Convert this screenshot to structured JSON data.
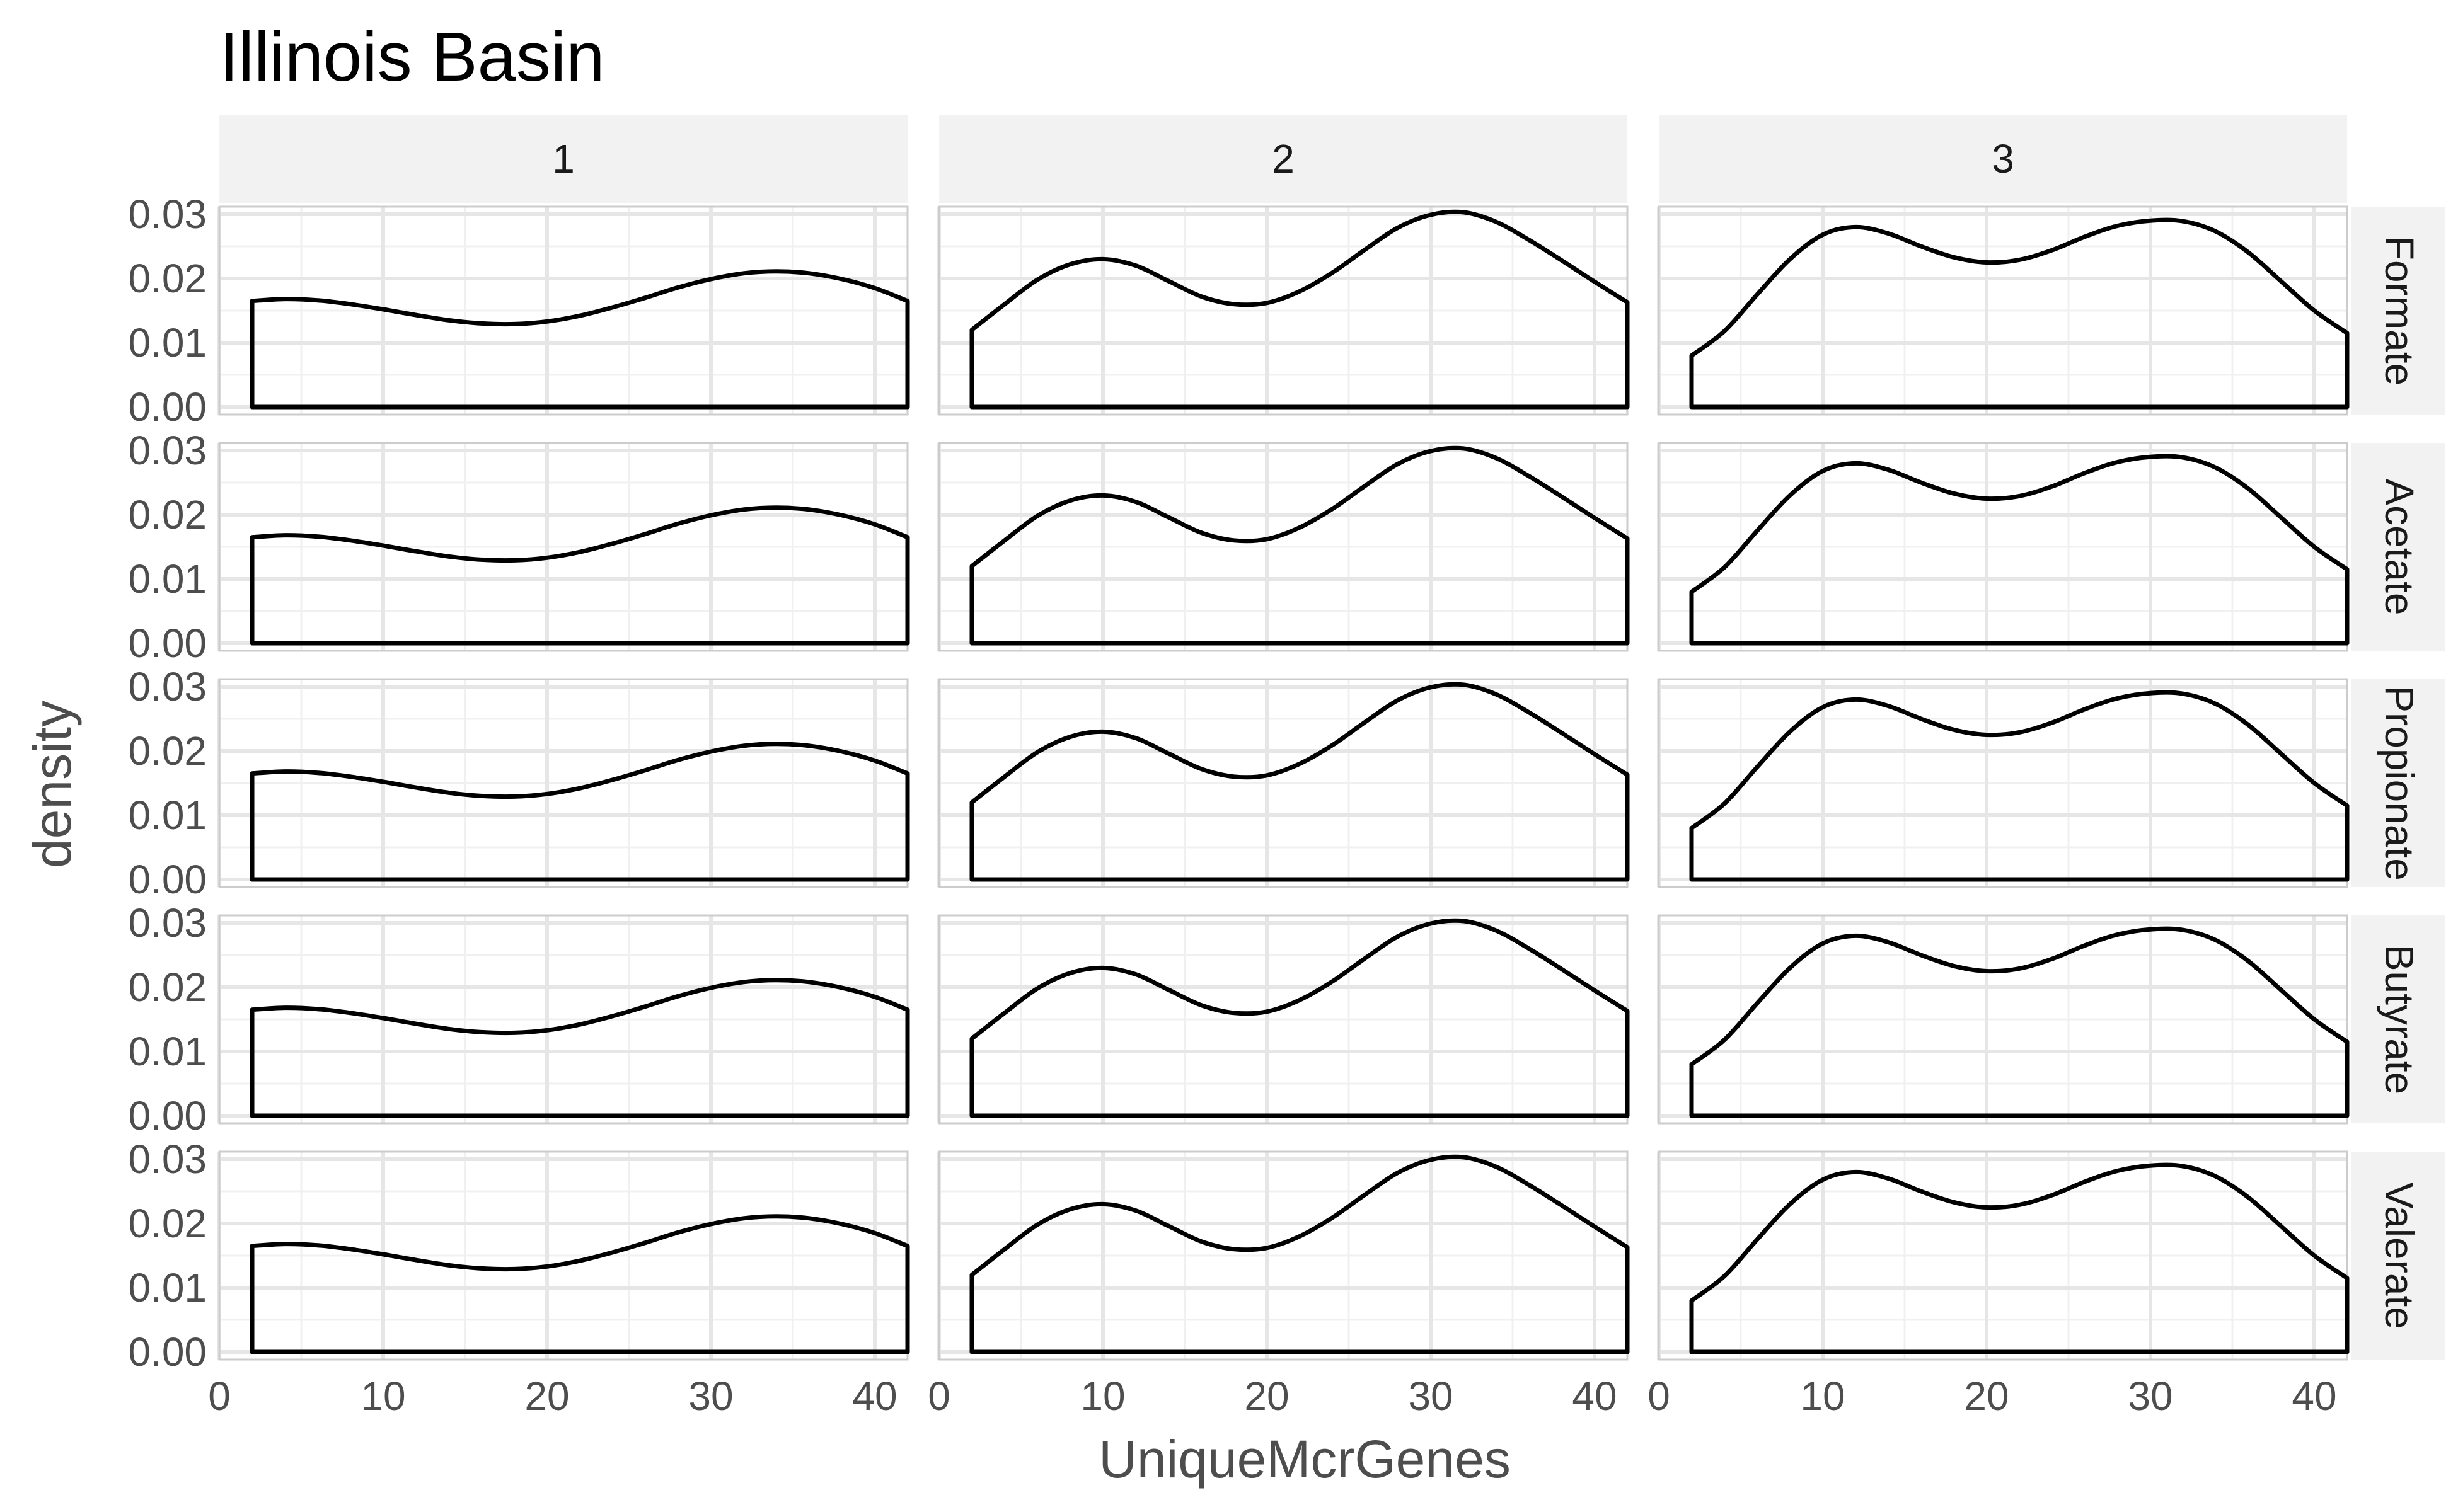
{
  "chart_data": {
    "type": "area",
    "chart_kind": "faceted density plot",
    "title": "Illinois Basin",
    "xlabel": "UniqueMcrGenes",
    "ylabel": "density",
    "xlim": [
      0,
      42
    ],
    "ylim": [
      0,
      0.03
    ],
    "x_ticks": [
      0,
      10,
      20,
      30,
      40
    ],
    "y_ticks": [
      "0.00",
      "0.01",
      "0.02",
      "0.03"
    ],
    "grid": true,
    "column_facets": [
      "1",
      "2",
      "3"
    ],
    "row_facets": [
      "Formate",
      "Acetate",
      "Propionate",
      "Butyrate",
      "Valerate"
    ],
    "x": [
      2,
      4,
      6,
      8,
      10,
      12,
      14,
      16,
      18,
      20,
      22,
      24,
      26,
      28,
      30,
      32,
      34,
      36,
      38,
      40,
      42
    ],
    "series": [
      {
        "name": "1",
        "values": [
          0.0165,
          0.0168,
          0.0166,
          0.016,
          0.0152,
          0.0143,
          0.0135,
          0.013,
          0.0129,
          0.0133,
          0.0142,
          0.0155,
          0.017,
          0.0186,
          0.0199,
          0.0208,
          0.0211,
          0.0208,
          0.0199,
          0.0185,
          0.0165
        ]
      },
      {
        "name": "2",
        "values": [
          0.012,
          0.016,
          0.0198,
          0.0222,
          0.023,
          0.022,
          0.0196,
          0.0172,
          0.016,
          0.0162,
          0.018,
          0.0209,
          0.0245,
          0.0279,
          0.0299,
          0.0303,
          0.0288,
          0.026,
          0.0228,
          0.0195,
          0.0163
        ]
      },
      {
        "name": "3",
        "values": [
          0.008,
          0.0118,
          0.0175,
          0.023,
          0.0268,
          0.028,
          0.027,
          0.025,
          0.0233,
          0.0225,
          0.0229,
          0.0244,
          0.0265,
          0.0282,
          0.029,
          0.0289,
          0.0273,
          0.024,
          0.0195,
          0.015,
          0.0115
        ]
      }
    ]
  }
}
